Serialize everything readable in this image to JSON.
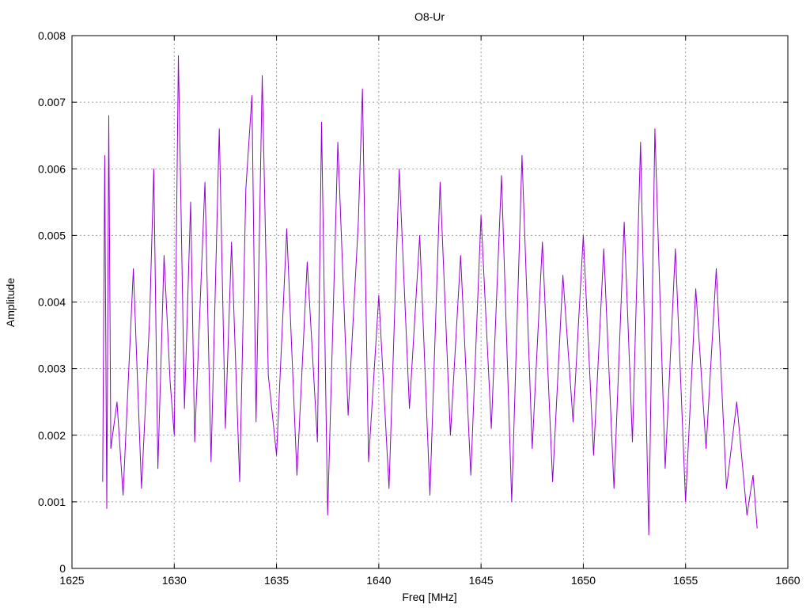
{
  "chart_data": {
    "type": "line",
    "title": "O8-Ur",
    "xlabel": "Freq [MHz]",
    "ylabel": "Amplitude",
    "xlim": [
      1625,
      1660
    ],
    "ylim": [
      0,
      0.008
    ],
    "xticks": [
      1625,
      1630,
      1635,
      1640,
      1645,
      1650,
      1655,
      1660
    ],
    "xtick_labels": [
      "1625",
      "1630",
      "1635",
      "1640",
      "1645",
      "1650",
      "1655",
      "1660"
    ],
    "yticks": [
      0,
      0.001,
      0.002,
      0.003,
      0.004,
      0.005,
      0.006,
      0.007,
      0.008
    ],
    "ytick_labels": [
      "0",
      "0.001",
      "0.002",
      "0.003",
      "0.004",
      "0.005",
      "0.006",
      "0.007",
      "0.008"
    ],
    "grid": true,
    "line_color": "#9400d3",
    "series": [
      {
        "x": [
          1626.5,
          1626.6,
          1626.7,
          1626.8,
          1626.9,
          1627.2,
          1627.5,
          1628.0,
          1628.4,
          1628.8,
          1629.0,
          1629.2,
          1629.5,
          1629.8,
          1630.0,
          1630.2,
          1630.5,
          1630.8,
          1631.0,
          1631.5,
          1631.8,
          1632.2,
          1632.5,
          1632.8,
          1633.2,
          1633.5,
          1633.8,
          1634.0,
          1634.3,
          1634.6,
          1635.0,
          1635.5,
          1636.0,
          1636.5,
          1637.0,
          1637.2,
          1637.5,
          1638.0,
          1638.5,
          1639.0,
          1639.2,
          1639.5,
          1640.0,
          1640.5,
          1641.0,
          1641.5,
          1642.0,
          1642.5,
          1643.0,
          1643.5,
          1644.0,
          1644.5,
          1645.0,
          1645.5,
          1646.0,
          1646.5,
          1647.0,
          1647.5,
          1648.0,
          1648.5,
          1649.0,
          1649.5,
          1650.0,
          1650.5,
          1651.0,
          1651.5,
          1652.0,
          1652.4,
          1652.8,
          1653.2,
          1653.5,
          1654.0,
          1654.5,
          1655.0,
          1655.5,
          1656.0,
          1656.5,
          1657.0,
          1657.5,
          1658.0,
          1658.3,
          1658.5
        ],
        "y": [
          0.0013,
          0.0062,
          0.0009,
          0.0068,
          0.0018,
          0.0025,
          0.0011,
          0.0045,
          0.0012,
          0.0038,
          0.006,
          0.0015,
          0.0047,
          0.0028,
          0.002,
          0.0077,
          0.0024,
          0.0055,
          0.0019,
          0.0058,
          0.0016,
          0.0066,
          0.0021,
          0.0049,
          0.0013,
          0.0057,
          0.0071,
          0.0022,
          0.0074,
          0.0029,
          0.0017,
          0.0051,
          0.0014,
          0.0046,
          0.0019,
          0.0067,
          0.0008,
          0.0064,
          0.0023,
          0.0052,
          0.0072,
          0.0016,
          0.0041,
          0.0012,
          0.006,
          0.0024,
          0.005,
          0.0011,
          0.0058,
          0.002,
          0.0047,
          0.0014,
          0.0053,
          0.0021,
          0.0059,
          0.001,
          0.0062,
          0.0018,
          0.0049,
          0.0013,
          0.0044,
          0.0022,
          0.005,
          0.0017,
          0.0048,
          0.0012,
          0.0052,
          0.0019,
          0.0064,
          0.0005,
          0.0066,
          0.0015,
          0.0048,
          0.001,
          0.0042,
          0.0018,
          0.0045,
          0.0012,
          0.0025,
          0.0008,
          0.0014,
          0.0006
        ]
      }
    ]
  }
}
